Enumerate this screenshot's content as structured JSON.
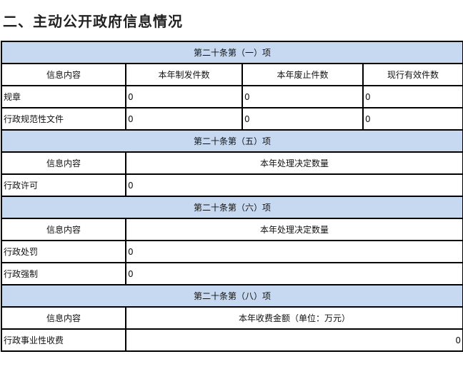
{
  "title": "二、主动公开政府信息情况",
  "sections": [
    {
      "heading": "第二十条第（一）项",
      "columns": [
        "信息内容",
        "本年制发件数",
        "本年废止件数",
        "现行有效件数"
      ],
      "rows": [
        {
          "label": "规章",
          "values": [
            "0",
            "0",
            "0"
          ]
        },
        {
          "label": "行政规范性文件",
          "values": [
            "0",
            "0",
            "0"
          ]
        }
      ]
    },
    {
      "heading": "第二十条第（五）项",
      "columns": [
        "信息内容",
        "本年处理决定数量"
      ],
      "rows": [
        {
          "label": "行政许可",
          "value": "0"
        }
      ]
    },
    {
      "heading": "第二十条第（六）项",
      "columns": [
        "信息内容",
        "本年处理决定数量"
      ],
      "rows": [
        {
          "label": "行政处罚",
          "value": "0"
        },
        {
          "label": "行政强制",
          "value": "0"
        }
      ]
    },
    {
      "heading": "第二十条第（八）项",
      "columns": [
        "信息内容",
        "本年收费金额（单位：万元）"
      ],
      "rows": [
        {
          "label": "行政事业性收费",
          "value": "0"
        }
      ]
    }
  ],
  "colors": {
    "section_header_bg": "#c6d9f0",
    "border": "#000000"
  }
}
